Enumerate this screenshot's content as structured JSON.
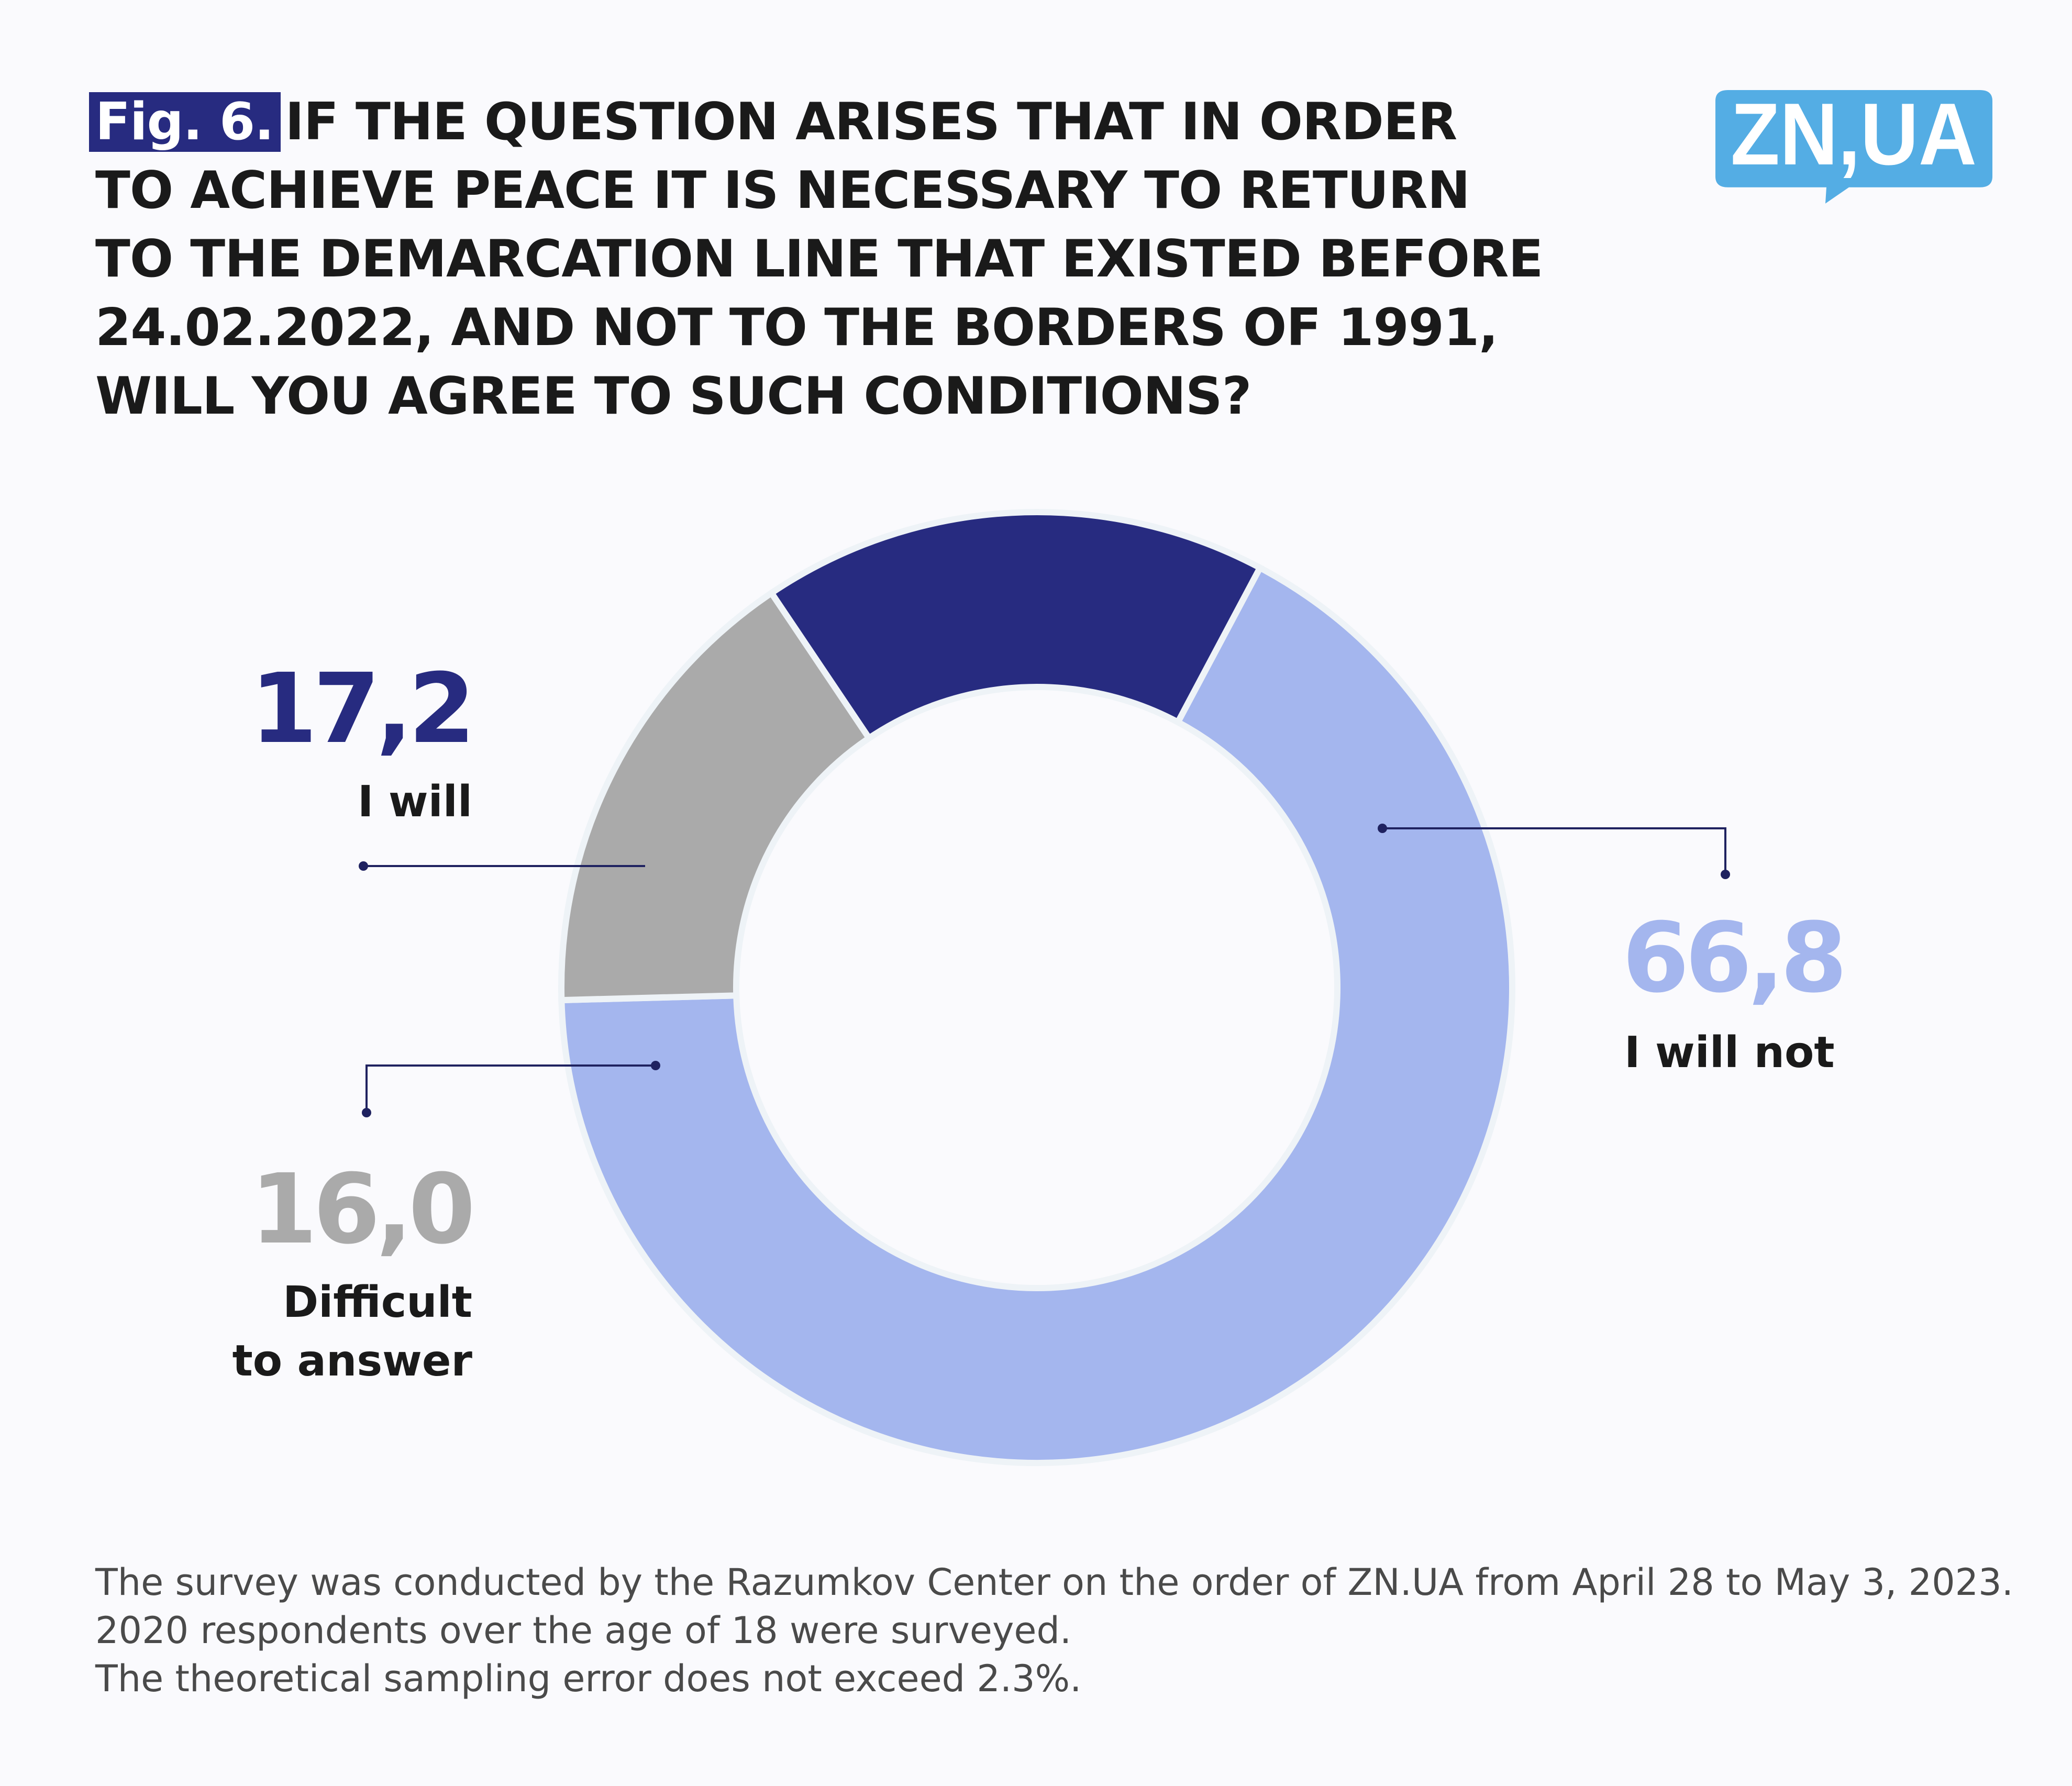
{
  "title": {
    "fig_label": "Fig. 6.",
    "lines": [
      "IF THE QUESTION ARISES THAT IN ORDER",
      "TO ACHIEVE PEACE IT IS NECESSARY TO RETURN",
      "TO THE DEMARCATION LINE THAT EXISTED BEFORE",
      "24.02.2022, AND NOT TO THE BORDERS OF 1991,",
      "WILL YOU AGREE TO SUCH CONDITIONS?"
    ]
  },
  "logo": {
    "text": "ZN,UA",
    "color": "#54ade4"
  },
  "chart_data": {
    "type": "pie",
    "variant": "donut",
    "start_angle_deg": 28,
    "direction": "clockwise",
    "slices": [
      {
        "label": "I will not",
        "value": 66.8,
        "display": "66,8",
        "color": "#a4b6ee",
        "value_color": "#a4b6ee"
      },
      {
        "label": "Difficult to answer",
        "label_lines": [
          "Difficult",
          "to answer"
        ],
        "value": 16.0,
        "display": "16,0",
        "color": "#aaaaaa",
        "value_color": "#aaaaaa"
      },
      {
        "label": "I will",
        "value": 17.2,
        "display": "17,2",
        "color": "#272b80",
        "value_color": "#272b80"
      }
    ]
  },
  "footnote": [
    "The survey was conducted by the Razumkov Center on the order of ZN.UA from April 28 to May 3, 2023.",
    "2020 respondents over the age of 18 were surveyed.",
    "The theoretical sampling error does not exceed 2.3%."
  ]
}
